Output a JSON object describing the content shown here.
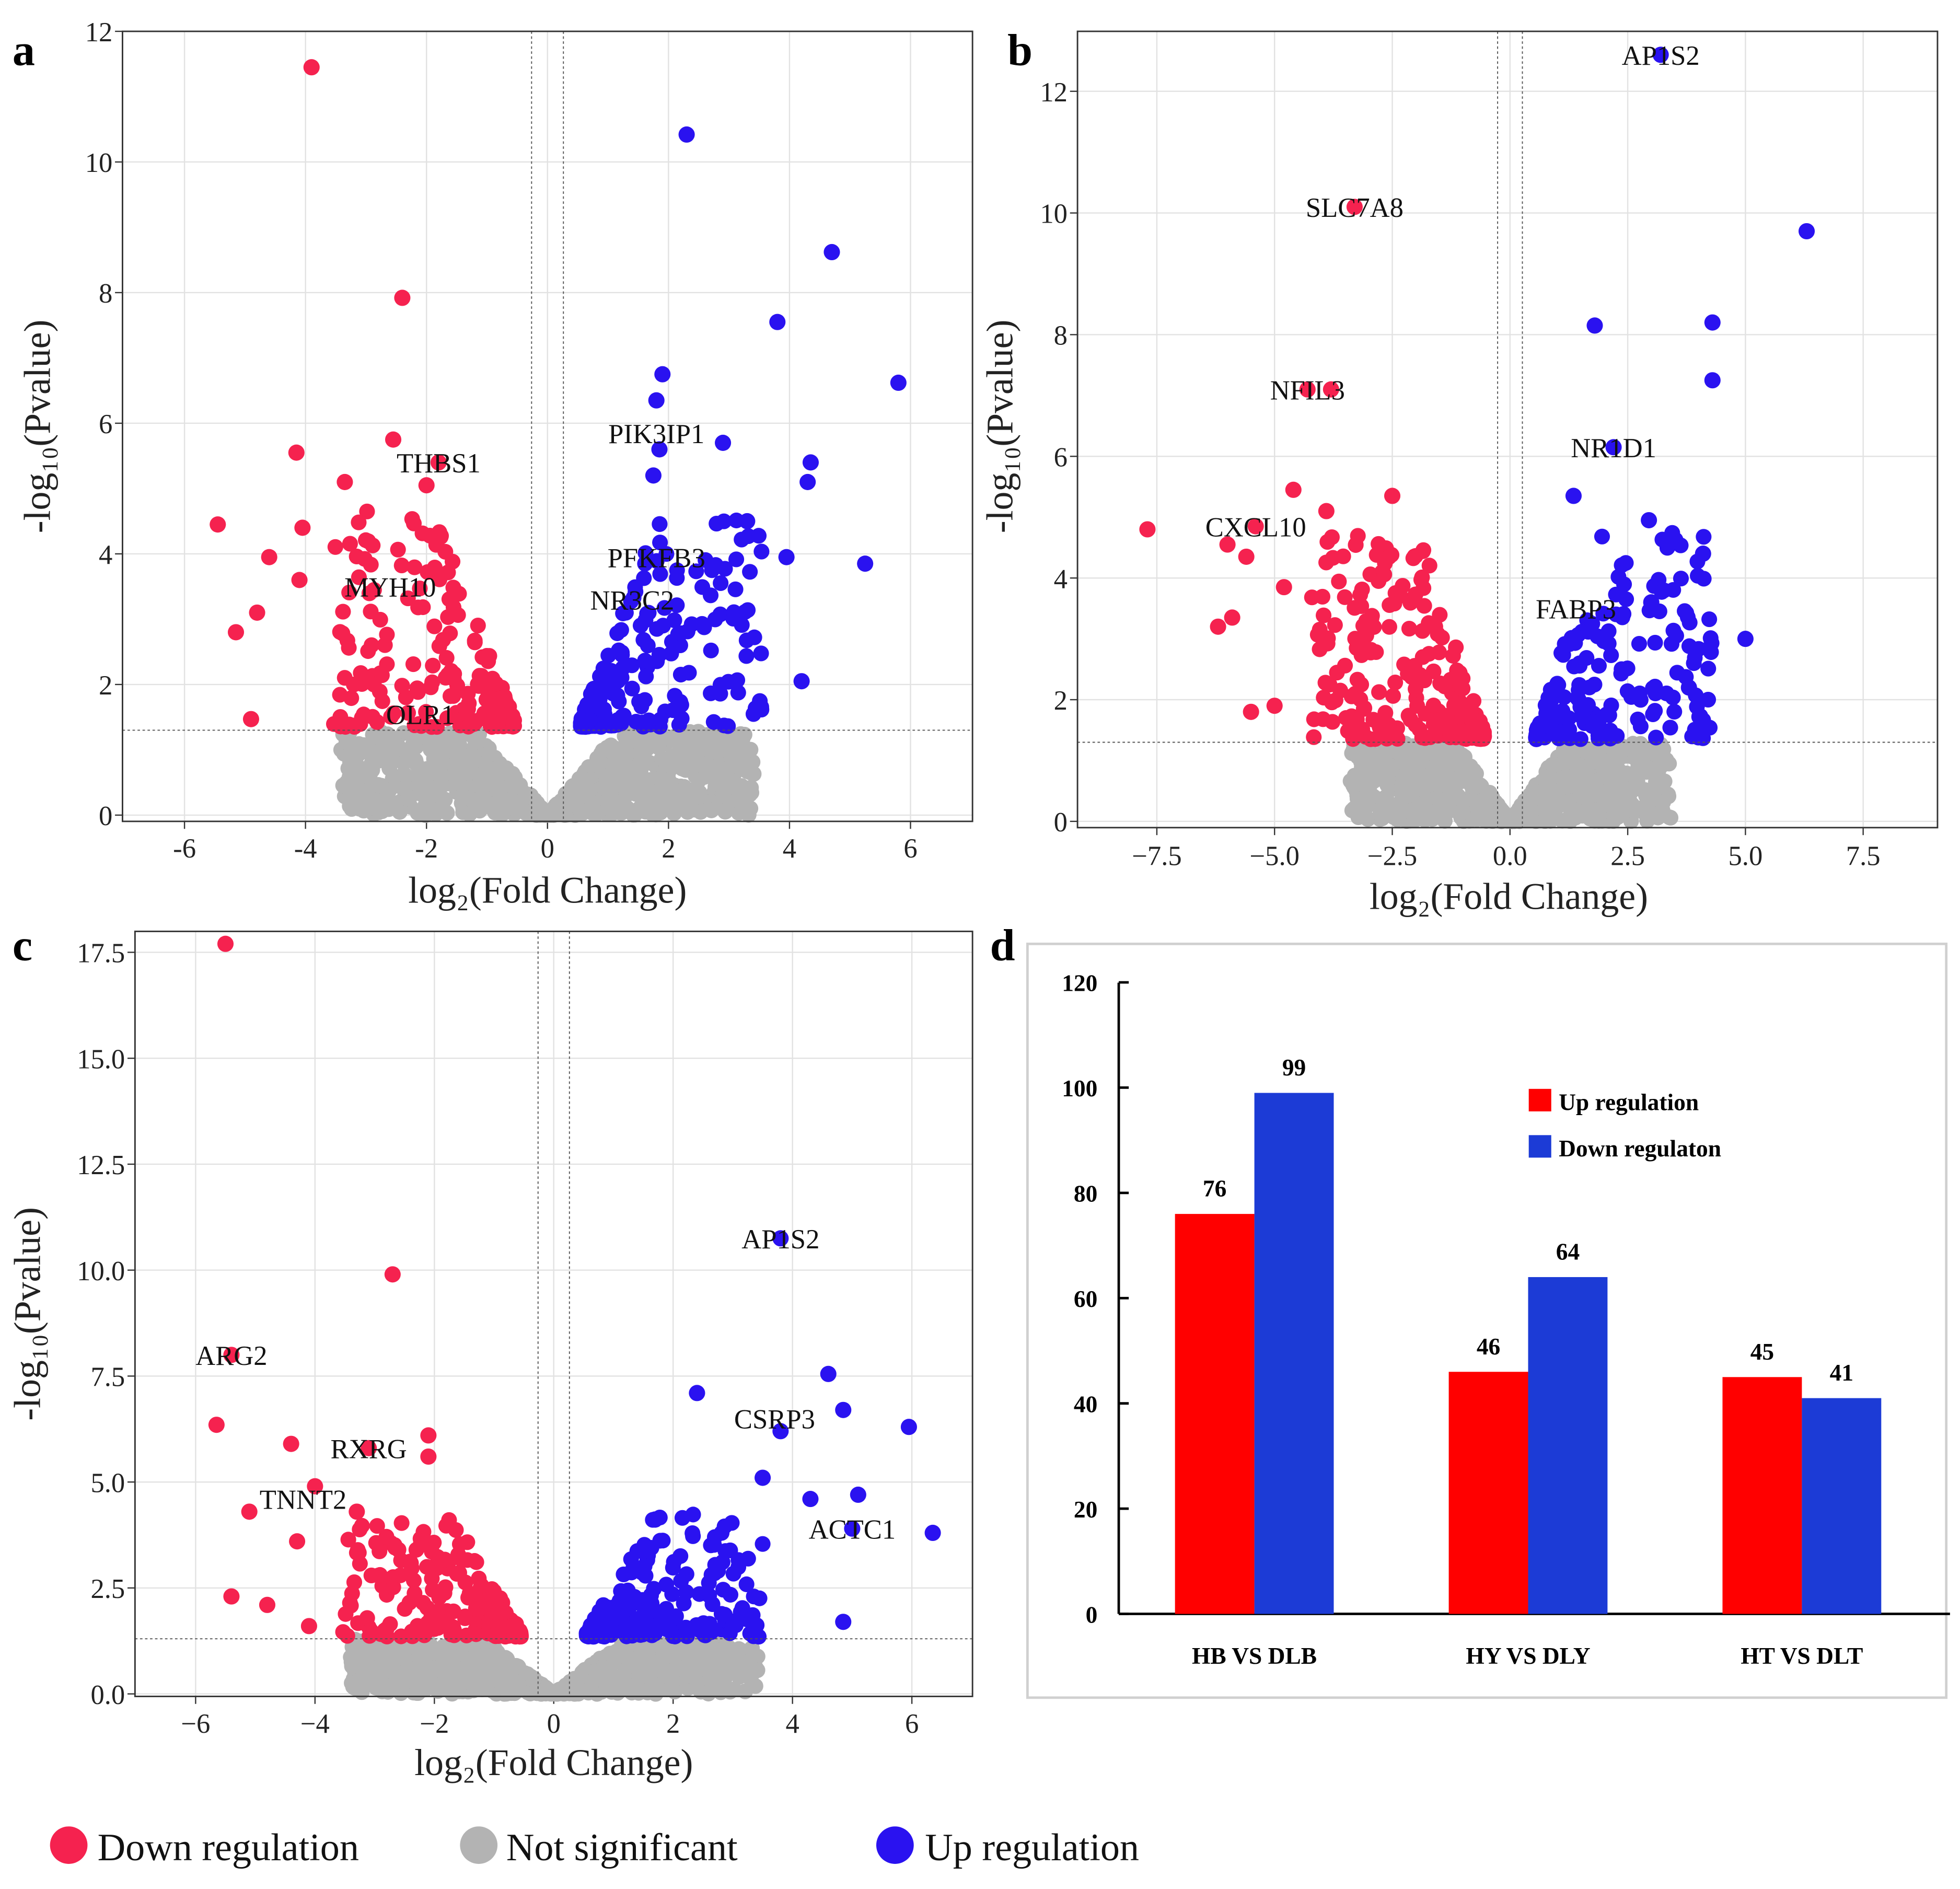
{
  "legend": {
    "items": [
      {
        "label": "Down regulation",
        "color": "#f5224f"
      },
      {
        "label": "Not significant",
        "color": "#b3b3b3"
      },
      {
        "label": "Up regulation",
        "color": "#2a12f0"
      }
    ]
  },
  "chart_data": [
    {
      "type": "scatter",
      "panel": "a",
      "xlabel": "log₂(Fold Change)",
      "ylabel": "-log₁₀(Pvalue)",
      "xlim": [
        -7,
        7
      ],
      "ylim": [
        0,
        12
      ],
      "xticks": [
        "-6",
        "-4",
        "-2",
        "0",
        "2",
        "4",
        "6"
      ],
      "xtick_values": [
        -6,
        -4,
        -2,
        0,
        2,
        4,
        6
      ],
      "yticks": [
        "0",
        "2",
        "4",
        "6",
        "8",
        "10",
        "12"
      ],
      "ytick_values": [
        0,
        2,
        4,
        6,
        8,
        10,
        12
      ],
      "fc_threshold": 0.263,
      "p_threshold": 1.3,
      "grid": true,
      "down_points": [
        [
          -3.9,
          11.45
        ],
        [
          -2.4,
          7.92
        ],
        [
          -2.55,
          5.75
        ],
        [
          -4.15,
          5.55
        ],
        [
          -3.35,
          5.1
        ],
        [
          -5.45,
          4.45
        ],
        [
          -4.05,
          4.4
        ],
        [
          -4.6,
          3.95
        ],
        [
          -5.15,
          2.8
        ],
        [
          -4.9,
          1.47
        ],
        [
          -1.8,
          5.4
        ],
        [
          -2.0,
          5.05
        ],
        [
          -4.1,
          3.6
        ],
        [
          -4.8,
          3.1
        ]
      ],
      "up_points": [
        [
          2.3,
          10.42
        ],
        [
          4.7,
          8.62
        ],
        [
          3.8,
          7.55
        ],
        [
          1.9,
          6.75
        ],
        [
          5.8,
          6.62
        ],
        [
          1.8,
          6.35
        ],
        [
          2.9,
          5.7
        ],
        [
          4.35,
          5.4
        ],
        [
          4.3,
          5.1
        ],
        [
          3.3,
          4.5
        ],
        [
          5.25,
          3.85
        ],
        [
          3.95,
          3.95
        ],
        [
          4.2,
          2.05
        ],
        [
          1.85,
          5.6
        ],
        [
          1.75,
          5.2
        ]
      ],
      "labels": [
        {
          "text": "THBS1",
          "x": -1.8,
          "y": 5.4
        },
        {
          "text": "PIK3IP1",
          "x": 1.8,
          "y": 5.85
        },
        {
          "text": "PFKFB3",
          "x": 1.8,
          "y": 3.95
        },
        {
          "text": "MYH10",
          "x": -2.6,
          "y": 3.5
        },
        {
          "text": "NR3C2",
          "x": 1.4,
          "y": 3.3
        },
        {
          "text": "OLR1",
          "x": -2.1,
          "y": 1.55
        }
      ]
    },
    {
      "type": "scatter",
      "panel": "b",
      "xlabel": "log₂(Fold Change)",
      "ylabel": "-log₁₀(Pvalue)",
      "xlim": [
        -9,
        9
      ],
      "ylim": [
        0,
        13
      ],
      "xticks": [
        "−7.5",
        "−5.0",
        "−2.5",
        "0.0",
        "2.5",
        "5.0",
        "7.5"
      ],
      "xtick_values": [
        -7.5,
        -5,
        -2.5,
        0,
        2.5,
        5,
        7.5
      ],
      "yticks": [
        "0",
        "2",
        "4",
        "6",
        "8",
        "10",
        "12"
      ],
      "ytick_values": [
        0,
        2,
        4,
        6,
        8,
        10,
        12
      ],
      "fc_threshold": 0.263,
      "p_threshold": 1.3,
      "grid": true,
      "down_points": [
        [
          -3.3,
          10.1
        ],
        [
          -4.3,
          7.1
        ],
        [
          -3.8,
          7.1
        ],
        [
          -5.4,
          4.85
        ],
        [
          -7.7,
          4.8
        ],
        [
          -4.6,
          5.45
        ],
        [
          -6.0,
          4.55
        ],
        [
          -5.6,
          4.35
        ],
        [
          -6.2,
          3.2
        ],
        [
          -5.9,
          3.35
        ],
        [
          -5.5,
          1.8
        ],
        [
          -5.0,
          1.9
        ],
        [
          -3.9,
          5.1
        ],
        [
          -2.5,
          5.35
        ],
        [
          -4.8,
          3.85
        ]
      ],
      "up_points": [
        [
          3.2,
          12.6
        ],
        [
          6.3,
          9.7
        ],
        [
          1.8,
          8.15
        ],
        [
          4.3,
          8.2
        ],
        [
          4.3,
          7.25
        ],
        [
          2.2,
          6.15
        ],
        [
          1.35,
          5.35
        ],
        [
          2.95,
          4.95
        ],
        [
          4.1,
          4.4
        ],
        [
          5.0,
          3.0
        ],
        [
          3.0,
          3.6
        ],
        [
          3.8,
          2.2
        ]
      ],
      "labels": [
        {
          "text": "AP1S2",
          "x": 3.2,
          "y": 12.6
        },
        {
          "text": "SLC7A8",
          "x": -3.3,
          "y": 10.1
        },
        {
          "text": "NFIL3",
          "x": -4.3,
          "y": 7.1
        },
        {
          "text": "NR1D1",
          "x": 2.2,
          "y": 6.15
        },
        {
          "text": "CXCL10",
          "x": -5.4,
          "y": 4.85
        },
        {
          "text": "FABP3",
          "x": 1.4,
          "y": 3.5
        }
      ]
    },
    {
      "type": "scatter",
      "panel": "c",
      "xlabel": "log₂(Fold Change)",
      "ylabel": "-log₁₀(Pvalue)",
      "xlim": [
        -7,
        7
      ],
      "ylim": [
        0,
        18
      ],
      "xticks": [
        "−6",
        "−4",
        "−2",
        "0",
        "2",
        "4",
        "6"
      ],
      "xtick_values": [
        -6,
        -4,
        -2,
        0,
        2,
        4,
        6
      ],
      "yticks": [
        "0.0",
        "2.5",
        "5.0",
        "7.5",
        "10.0",
        "12.5",
        "15.0",
        "17.5"
      ],
      "ytick_values": [
        0,
        2.5,
        5,
        7.5,
        10,
        12.5,
        15,
        17.5
      ],
      "fc_threshold": 0.263,
      "p_threshold": 1.3,
      "grid": true,
      "down_points": [
        [
          -5.5,
          17.7
        ],
        [
          -2.7,
          9.9
        ],
        [
          -5.4,
          8.0
        ],
        [
          -5.65,
          6.35
        ],
        [
          -4.4,
          5.9
        ],
        [
          -3.1,
          5.8
        ],
        [
          -2.1,
          6.1
        ],
        [
          -2.1,
          5.6
        ],
        [
          -5.1,
          4.3
        ],
        [
          -4.3,
          3.6
        ],
        [
          -5.4,
          2.3
        ],
        [
          -4.8,
          2.1
        ],
        [
          -4.1,
          1.6
        ],
        [
          -3.3,
          4.3
        ],
        [
          -4.0,
          4.9
        ]
      ],
      "up_points": [
        [
          3.8,
          10.75
        ],
        [
          4.6,
          7.55
        ],
        [
          2.4,
          7.1
        ],
        [
          4.85,
          6.7
        ],
        [
          5.95,
          6.3
        ],
        [
          3.8,
          6.2
        ],
        [
          6.35,
          3.8
        ],
        [
          5.1,
          4.7
        ],
        [
          4.85,
          1.7
        ],
        [
          4.3,
          4.6
        ],
        [
          5.0,
          3.9
        ],
        [
          3.5,
          5.1
        ]
      ],
      "labels": [
        {
          "text": "AP1S2",
          "x": 3.8,
          "y": 10.75
        },
        {
          "text": "ARG2",
          "x": -5.4,
          "y": 8.0
        },
        {
          "text": "CSRP3",
          "x": 3.7,
          "y": 6.5
        },
        {
          "text": "RXRG",
          "x": -3.1,
          "y": 5.8
        },
        {
          "text": "TNNT2",
          "x": -4.2,
          "y": 4.6
        },
        {
          "text": "ACTC1",
          "x": 5.0,
          "y": 3.9
        }
      ]
    },
    {
      "type": "bar",
      "panel": "d",
      "categories": [
        "HB VS DLB",
        "HY VS DLY",
        "HT VS DLT"
      ],
      "series": [
        {
          "name": "Up regulation",
          "values": [
            76,
            46,
            45
          ],
          "color": "#ff0000"
        },
        {
          "name": "Down regulaton",
          "values": [
            99,
            64,
            41
          ],
          "color": "#1c3bd6"
        }
      ],
      "ylim": [
        0,
        120
      ],
      "yticks": [
        "0",
        "20",
        "40",
        "60",
        "80",
        "100",
        "120"
      ],
      "ytick_values": [
        0,
        20,
        40,
        60,
        80,
        100,
        120
      ],
      "legend_position": "top-right",
      "grid": false
    }
  ]
}
